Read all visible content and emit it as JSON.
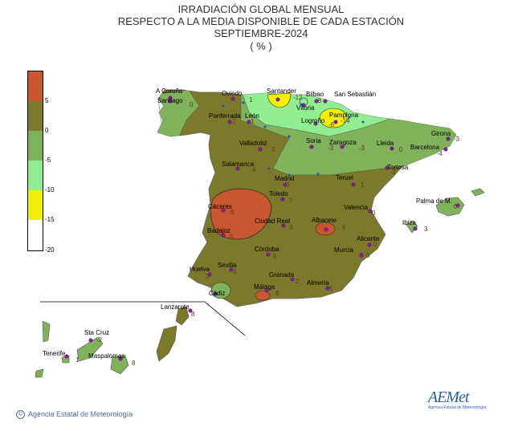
{
  "title": {
    "line1": "IRRADIACIÓN GLOBAL MENSUAL",
    "line2": "RESPECTO A LA MEDIA DISPONIBLE DE CADA ESTACIÓN",
    "line3": "SEPTIEMBRE-2024",
    "line4": "( % )"
  },
  "legend": {
    "labels": [
      "5",
      "0",
      "-5",
      "-10",
      "-15",
      "-20"
    ],
    "classes": [
      {
        "range": "> 5",
        "color": "#c8562e"
      },
      {
        "range": "0 a 5",
        "color": "#7c7a2a"
      },
      {
        "range": "-5 a 0",
        "color": "#80b25c"
      },
      {
        "range": "-10 a -5",
        "color": "#90ee90"
      },
      {
        "range": "-15 a -10",
        "color": "#f2f000"
      },
      {
        "range": "-20 a -15",
        "color": "#ffffff"
      }
    ]
  },
  "stations": [
    {
      "name": "A Coruña",
      "value": ""
    },
    {
      "name": "Santiago",
      "value": "0"
    },
    {
      "name": "Oviedo",
      "value": "1"
    },
    {
      "name": "Santander",
      "value": "-12"
    },
    {
      "name": "Bilbao",
      "value": "-8"
    },
    {
      "name": "San Sebastián",
      "value": ""
    },
    {
      "name": "Vitoria",
      "value": ""
    },
    {
      "name": "Pamplona",
      "value": "-14"
    },
    {
      "name": "Ponferrada",
      "value": "-1"
    },
    {
      "name": "León",
      "value": "1"
    },
    {
      "name": "Logroño",
      "value": "-6"
    },
    {
      "name": "Valladolid",
      "value": "3"
    },
    {
      "name": "Soria",
      "value": "-3"
    },
    {
      "name": "Zaragoza",
      "value": "-3"
    },
    {
      "name": "Lleida",
      "value": "0"
    },
    {
      "name": "Girona",
      "value": "-3"
    },
    {
      "name": "Barcelona",
      "value": "-4"
    },
    {
      "name": "Tortosa",
      "value": "-2"
    },
    {
      "name": "Salamanca",
      "value": "4"
    },
    {
      "name": "Madrid",
      "value": "0"
    },
    {
      "name": "Teruel",
      "value": "1"
    },
    {
      "name": "Toledo",
      "value": "7"
    },
    {
      "name": "Valencia",
      "value": "0"
    },
    {
      "name": "Palma de M.",
      "value": "0"
    },
    {
      "name": "Cáceres",
      "value": "6"
    },
    {
      "name": "Ciudad Real",
      "value": "3"
    },
    {
      "name": "Albacete",
      "value": "6"
    },
    {
      "name": "Ibiza",
      "value": "3"
    },
    {
      "name": "Badajoz",
      "value": "5"
    },
    {
      "name": "Alicante",
      "value": "0"
    },
    {
      "name": "Córdoba",
      "value": "5"
    },
    {
      "name": "Murcia",
      "value": "0"
    },
    {
      "name": "Huelva",
      "value": "2"
    },
    {
      "name": "Sevilla",
      "value": "4"
    },
    {
      "name": "Granada",
      "value": "2"
    },
    {
      "name": "Almería",
      "value": "5"
    },
    {
      "name": "Cádiz",
      "value": ""
    },
    {
      "name": "Málaga",
      "value": "6"
    },
    {
      "name": "Lanzarote",
      "value": "8"
    },
    {
      "name": "Sta Cruz",
      "value": "-2"
    },
    {
      "name": "Tenerife",
      "value": "1"
    },
    {
      "name": "Maspalomas",
      "value": "8"
    }
  ],
  "footer": {
    "copyright": "©",
    "agency": "Agencia Estatal de Meteorología"
  },
  "logo": {
    "text": "AEMet",
    "subtitle": "Agencia Estatal de Meteorología"
  }
}
